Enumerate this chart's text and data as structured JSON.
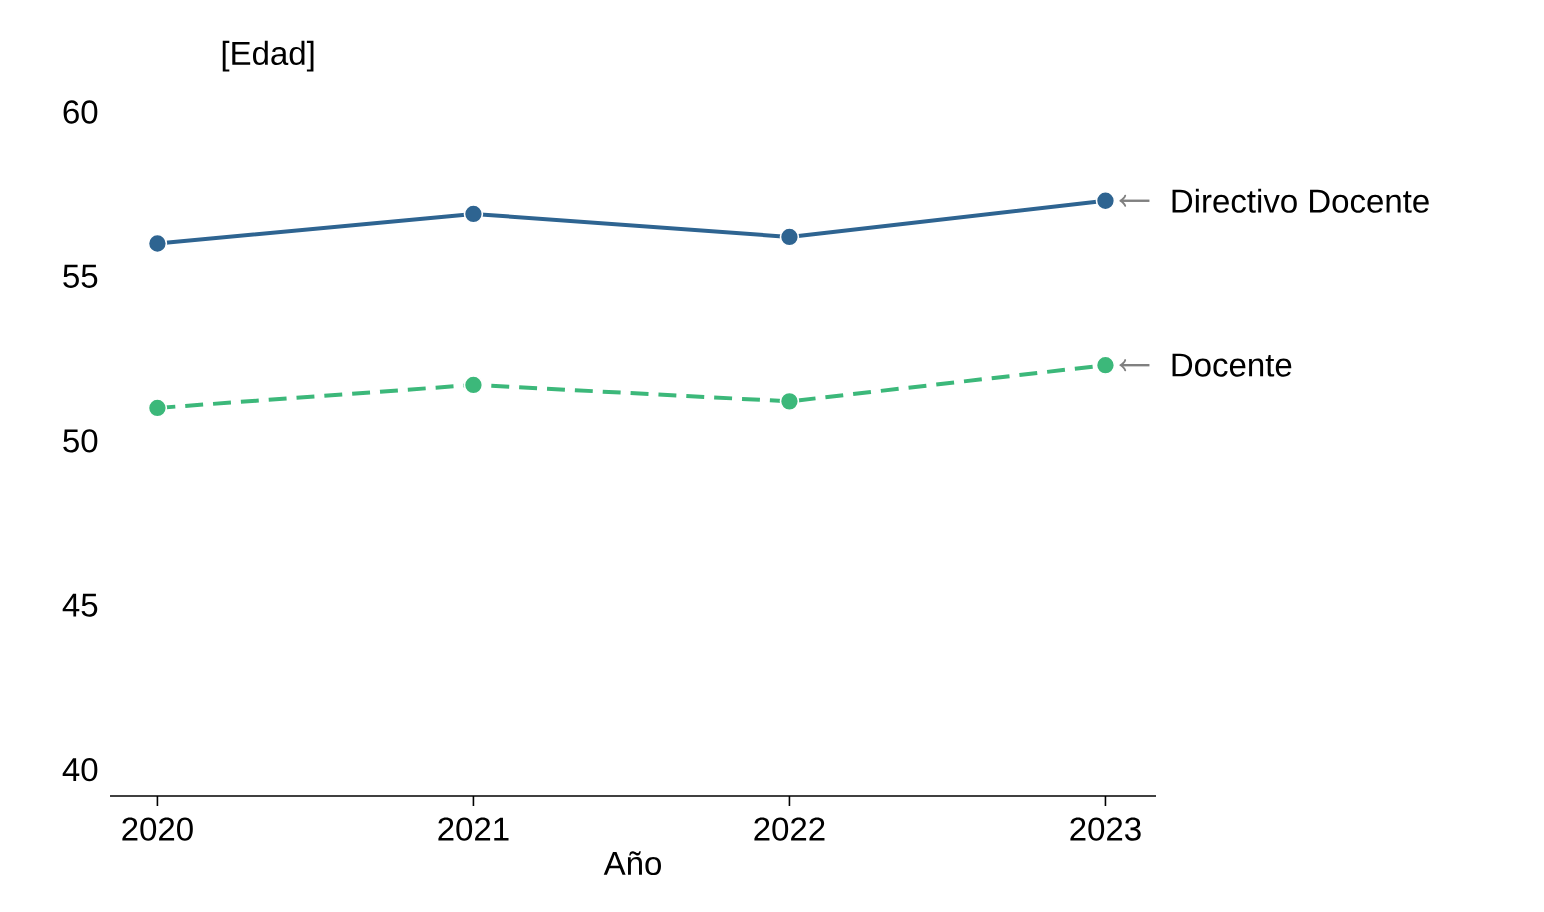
{
  "chart_data": {
    "type": "line",
    "ylabel": "[Edad]",
    "xlabel": "Año",
    "x": [
      2020,
      2021,
      2022,
      2023
    ],
    "series": [
      {
        "name": "Directivo Docente",
        "color": "#2e6491",
        "values": [
          56.0,
          56.9,
          56.2,
          57.3
        ],
        "line_style": "solid"
      },
      {
        "name": "Docente",
        "color": "#3cb87a",
        "values": [
          51.0,
          51.7,
          51.2,
          52.3
        ],
        "line_style": "dashed"
      }
    ],
    "xlim": [
      2019.85,
      2023.16
    ],
    "ylim": [
      39.2,
      60
    ],
    "xticks": [
      2020,
      2021,
      2022,
      2023
    ],
    "yticks": [
      40,
      45,
      50,
      55,
      60
    ],
    "marker": "circle",
    "grid": false,
    "legend": false
  }
}
